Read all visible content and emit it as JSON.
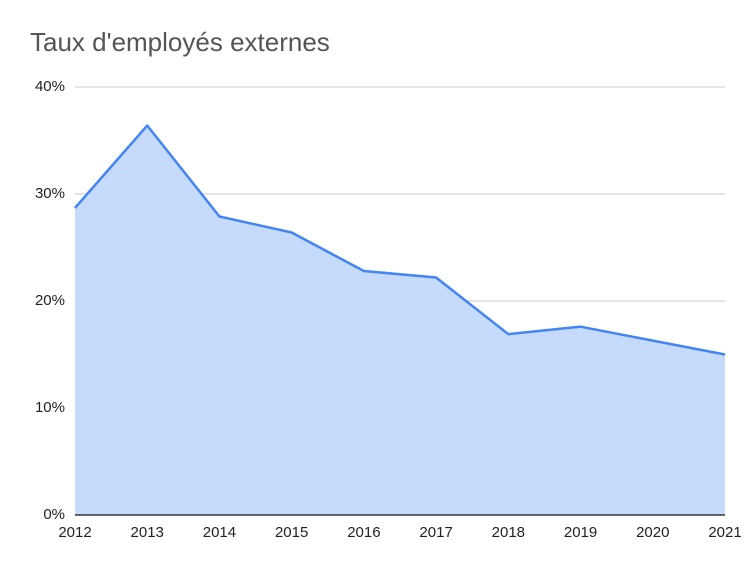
{
  "chart_data": {
    "type": "area",
    "title": "Taux d'employés externes",
    "categories": [
      "2012",
      "2013",
      "2014",
      "2015",
      "2016",
      "2017",
      "2018",
      "2019",
      "2020",
      "2021"
    ],
    "values": [
      28.7,
      36.4,
      27.9,
      26.4,
      22.8,
      22.2,
      16.9,
      17.6,
      16.3,
      15.0
    ],
    "color": "#4285f4",
    "fill_color": "#c6dafb",
    "ylim": [
      0,
      40
    ],
    "yticks": [
      {
        "value": 0,
        "label": "0%"
      },
      {
        "value": 10,
        "label": "10%"
      },
      {
        "value": 20,
        "label": "20%"
      },
      {
        "value": 30,
        "label": "30%"
      },
      {
        "value": 40,
        "label": "40%"
      }
    ],
    "grid": true
  }
}
